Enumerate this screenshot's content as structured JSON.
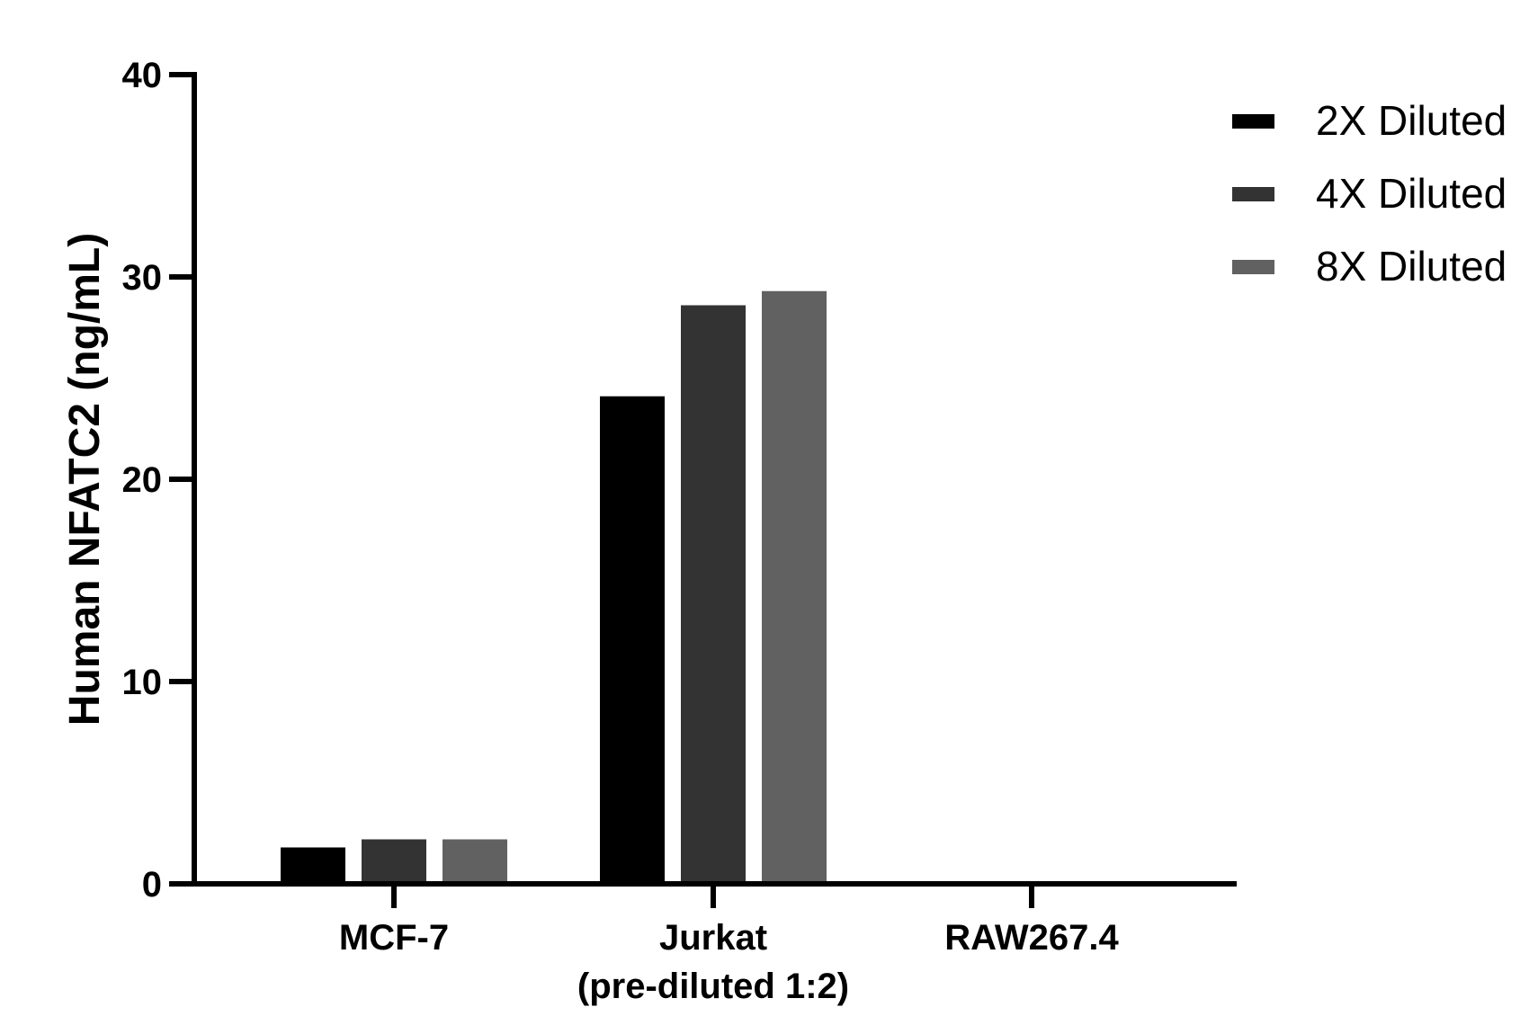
{
  "chart_data": {
    "type": "bar",
    "categories": [
      [
        "MCF-7"
      ],
      [
        "Jurkat",
        "(pre-diluted 1:2)"
      ],
      [
        "RAW267.4"
      ]
    ],
    "series": [
      {
        "name": "2X Diluted",
        "values": [
          1.8,
          24.1,
          0
        ],
        "color": "#000000"
      },
      {
        "name": "4X Diluted",
        "values": [
          2.2,
          28.6,
          0
        ],
        "color": "#333333"
      },
      {
        "name": "8X Diluted",
        "values": [
          2.2,
          29.3,
          0
        ],
        "color": "#616161"
      }
    ],
    "title": "",
    "xlabel": "",
    "ylabel": "Human NFATC2 (ng/mL)",
    "ylim": [
      0,
      40
    ],
    "yticks": [
      0,
      10,
      20,
      30,
      40
    ],
    "grid": false,
    "legend_position": "top-right"
  }
}
